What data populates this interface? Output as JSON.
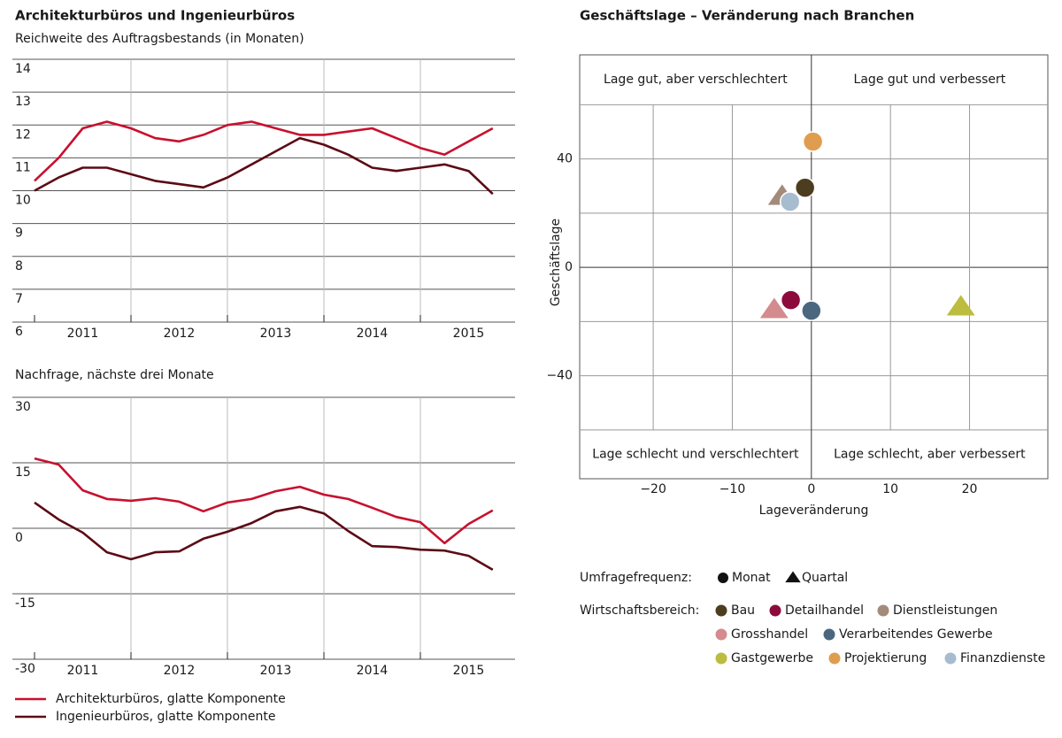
{
  "chart_data": [
    {
      "type": "line",
      "title": "Architekturbüros und Ingenieurbüros",
      "subtitle": "Reichweite des Auftragsbestands (in Monaten)",
      "x": [
        2011.0,
        2011.25,
        2011.5,
        2011.75,
        2012.0,
        2012.25,
        2012.5,
        2012.75,
        2013.0,
        2013.25,
        2013.5,
        2013.75,
        2014.0,
        2014.25,
        2014.5,
        2014.75,
        2015.0,
        2015.25,
        2015.5,
        2015.75
      ],
      "xlim": [
        2011,
        2016
      ],
      "xticks": [
        2011,
        2012,
        2013,
        2014,
        2015
      ],
      "ylim": [
        6,
        14
      ],
      "yticks": [
        6,
        7,
        8,
        9,
        10,
        11,
        12,
        13,
        14
      ],
      "grid": true,
      "series": [
        {
          "color": "#c8102e",
          "values": [
            10.3,
            11.0,
            11.9,
            12.1,
            11.9,
            11.6,
            11.5,
            11.7,
            12.0,
            12.1,
            11.9,
            11.7,
            11.7,
            11.8,
            11.9,
            11.6,
            11.3,
            11.1,
            11.5,
            11.9
          ]
        },
        {
          "color": "#5c0a14",
          "values": [
            10.0,
            10.4,
            10.7,
            10.7,
            10.5,
            10.3,
            10.2,
            10.1,
            10.4,
            10.8,
            11.2,
            11.6,
            11.4,
            11.1,
            10.7,
            10.6,
            10.7,
            10.8,
            10.6,
            9.9
          ]
        }
      ]
    },
    {
      "type": "line",
      "subtitle": "Nachfrage, nächste drei Monate",
      "x": [
        2011.0,
        2011.25,
        2011.5,
        2011.75,
        2012.0,
        2012.25,
        2012.5,
        2012.75,
        2013.0,
        2013.25,
        2013.5,
        2013.75,
        2014.0,
        2014.25,
        2014.5,
        2014.75,
        2015.0,
        2015.25,
        2015.5,
        2015.75
      ],
      "xlim": [
        2011,
        2016
      ],
      "xticks": [
        2011,
        2012,
        2013,
        2014,
        2015
      ],
      "ylim": [
        -30,
        30
      ],
      "yticks": [
        -30,
        -15,
        0,
        15,
        30
      ],
      "grid": true,
      "series": [
        {
          "name": "Architekturbüros, glatte Komponente",
          "color": "#c8102e",
          "values": [
            16.0,
            14.6,
            8.7,
            6.7,
            6.3,
            6.9,
            6.1,
            3.9,
            5.9,
            6.7,
            8.5,
            9.5,
            7.7,
            6.7,
            4.7,
            2.6,
            1.4,
            -3.4,
            1.0,
            4.1
          ]
        },
        {
          "name": "Ingenieurbüros, glatte Komponente",
          "color": "#5c0a14",
          "values": [
            5.9,
            2.0,
            -1.0,
            -5.5,
            -7.1,
            -5.5,
            -5.3,
            -2.4,
            -0.8,
            1.2,
            3.9,
            4.9,
            3.4,
            -0.6,
            -4.1,
            -4.3,
            -4.9,
            -5.1,
            -6.3,
            -9.5
          ]
        }
      ]
    },
    {
      "type": "scatter",
      "title": "Geschäftslage – Veränderung nach Branchen",
      "x_label": "Lageveränderung",
      "y_label": "Geschäftslage",
      "xlim": [
        -29.3,
        29.9
      ],
      "xticks": [
        {
          "value": -20,
          "label": "−20"
        },
        {
          "value": -10,
          "label": "−10"
        },
        0,
        10,
        20
      ],
      "ylim": [
        -78,
        78.4
      ],
      "yticks": [
        {
          "value": -40,
          "label": "−40"
        },
        0,
        40
      ],
      "minor_yticks": [
        -60,
        -20,
        20,
        60
      ],
      "grid": true,
      "annotations": [
        "Lage gut, aber verschlechtert",
        "Lage gut und verbessert",
        "Lage schlecht und verschlechtert",
        "Lage schlecht, aber verbessert"
      ],
      "marker_legend": {
        "title": "Umfragefrequenz:",
        "items": [
          {
            "name": "Monat",
            "marker": "circle"
          },
          {
            "name": "Quartal",
            "marker": "triangle"
          }
        ]
      },
      "legend_title": "Wirtschaftsbereich:",
      "series": [
        {
          "name": "Bau",
          "color": "#4b3d1e",
          "marker": "circle",
          "x": [
            -0.8
          ],
          "y": [
            29.4
          ]
        },
        {
          "name": "Detailhandel",
          "color": "#8c0b3c",
          "marker": "circle",
          "x": [
            -2.6
          ],
          "y": [
            -12.1
          ]
        },
        {
          "name": "Dienstleistungen",
          "color": "#a38a7a",
          "marker": "triangle",
          "x": [
            -3.7
          ],
          "y": [
            26.1
          ]
        },
        {
          "name": "Grosshandel",
          "color": "#d48b8d",
          "marker": "triangle",
          "x": [
            -4.7
          ],
          "y": [
            -15.7
          ]
        },
        {
          "name": "Verarbeitendes Gewerbe",
          "color": "#4b6780",
          "marker": "circle",
          "x": [
            0.0
          ],
          "y": [
            -16.0
          ]
        },
        {
          "name": "Gastgewerbe",
          "color": "#bcbc3f",
          "marker": "triangle",
          "x": [
            18.9
          ],
          "y": [
            -14.7
          ]
        },
        {
          "name": "Projektierung",
          "color": "#e09d4f",
          "marker": "circle",
          "x": [
            0.2
          ],
          "y": [
            46.4
          ]
        },
        {
          "name": "Finanzdienste",
          "color": "#a7bccf",
          "marker": "circle",
          "x": [
            -2.7
          ],
          "y": [
            24.2
          ]
        }
      ]
    }
  ]
}
